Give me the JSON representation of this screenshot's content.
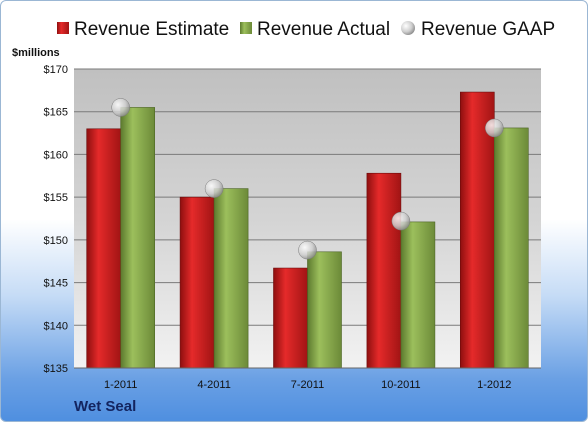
{
  "chart_data": {
    "type": "bar",
    "ylabel": "$millions",
    "ylim": [
      135,
      170
    ],
    "yticks": [
      135,
      140,
      145,
      150,
      155,
      160,
      165,
      170
    ],
    "ytick_labels": [
      "$135",
      "$140",
      "$145",
      "$150",
      "$155",
      "$160",
      "$165",
      "$170"
    ],
    "categories": [
      "1-2011",
      "4-2011",
      "7-2011",
      "10-2011",
      "1-2012"
    ],
    "series": [
      {
        "name": "Revenue Estimate",
        "type": "bar",
        "color": "#d01e1e",
        "values": [
          163.0,
          155.0,
          146.7,
          157.8,
          167.3
        ]
      },
      {
        "name": "Revenue Actual",
        "type": "bar",
        "color": "#86a84a",
        "values": [
          165.5,
          156.0,
          148.6,
          152.1,
          163.1
        ]
      },
      {
        "name": "Revenue GAAP",
        "type": "marker",
        "color": "#c8c8c8",
        "values": [
          165.5,
          156.0,
          148.8,
          152.2,
          163.1
        ]
      }
    ],
    "legend_position": "top",
    "grid": true
  },
  "company": "Wet Seal"
}
